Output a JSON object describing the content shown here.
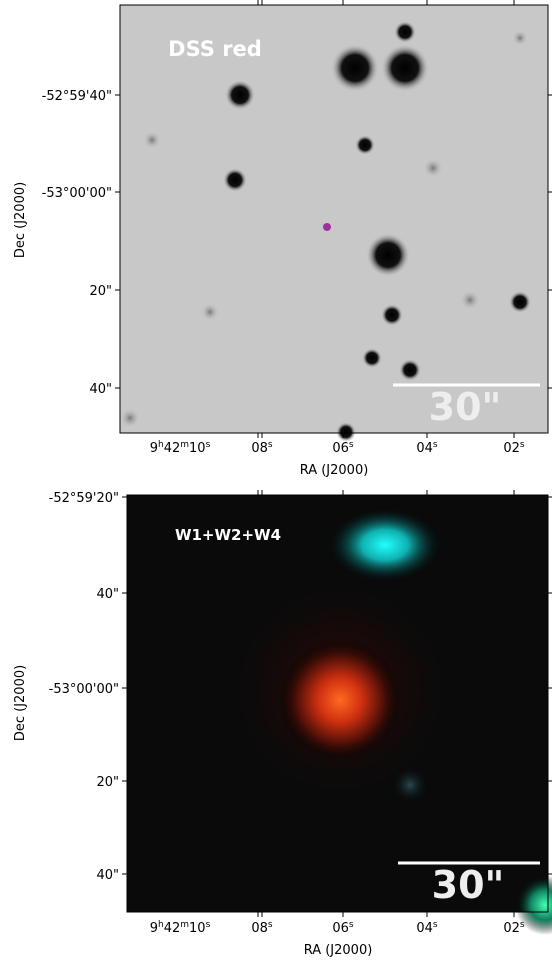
{
  "panels": [
    {
      "label": "DSS red",
      "x_label": "RA (J2000)",
      "y_label": "Dec (J2000)",
      "scale_bar": "30\"",
      "x_ticks": [
        [
          "9",
          "h",
          "42",
          "m",
          "10",
          "s"
        ],
        [
          "08",
          "s"
        ],
        [
          "06",
          "s"
        ],
        [
          "04",
          "s"
        ],
        [
          "02",
          "s"
        ]
      ],
      "y_ticks": [
        "-52°59'40\"",
        "-53°00'00\"",
        "20\"",
        "40\""
      ]
    },
    {
      "label": "W1+W2+W4",
      "x_label": "RA (J2000)",
      "y_label": "Dec (J2000)",
      "scale_bar": "30\"",
      "x_ticks": [
        [
          "9",
          "h",
          "42",
          "m",
          "10",
          "s"
        ],
        [
          "08",
          "s"
        ],
        [
          "06",
          "s"
        ],
        [
          "04",
          "s"
        ],
        [
          "02",
          "s"
        ]
      ],
      "y_ticks": [
        "-52°59'20\"",
        "40\"",
        "-53°00'00\"",
        "20\"",
        "40\""
      ]
    }
  ]
}
